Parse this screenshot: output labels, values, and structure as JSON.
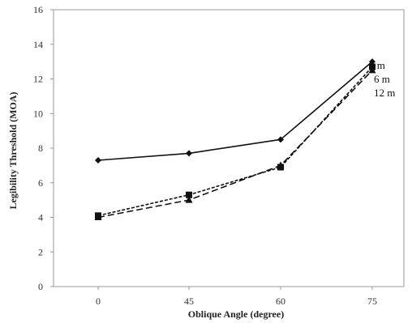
{
  "chart_data": {
    "type": "line",
    "title": "",
    "xlabel": "Oblique Angle (degree)",
    "ylabel": "Legibility Threshold (MOA)",
    "categories": [
      "0",
      "45",
      "60",
      "75"
    ],
    "ylim": [
      0,
      16
    ],
    "yticks": [
      "0",
      "2",
      "4",
      "6",
      "8",
      "10",
      "12",
      "14",
      "16"
    ],
    "grid": false,
    "legend": "inline labels at right end of series",
    "series": [
      {
        "name": "2 m",
        "values": [
          7.3,
          7.7,
          8.5,
          13.0
        ],
        "marker": "diamond",
        "dash": "solid"
      },
      {
        "name": "6 m",
        "values": [
          4.1,
          5.3,
          6.9,
          12.7
        ],
        "marker": "square",
        "dash": "short-dash"
      },
      {
        "name": "12 m",
        "values": [
          4.0,
          5.0,
          7.0,
          12.5
        ],
        "marker": "triangle",
        "dash": "long-dash"
      }
    ]
  }
}
